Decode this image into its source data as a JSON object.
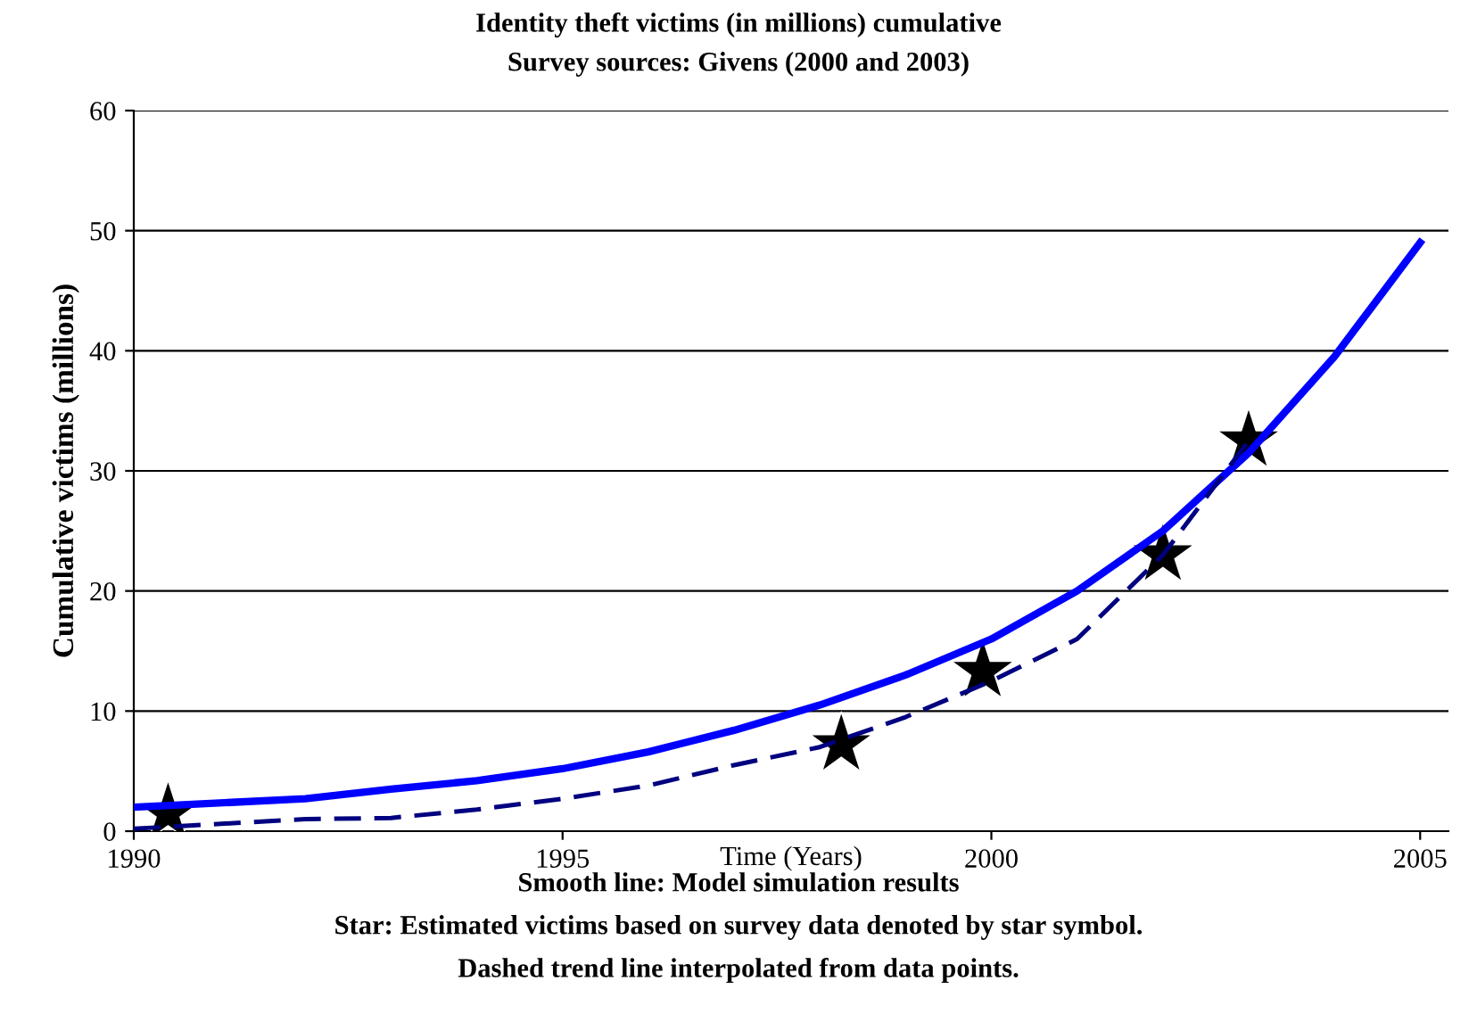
{
  "chart_data": {
    "type": "line",
    "title": "Identity theft victims (in millions) cumulative",
    "subtitle": "Survey sources: Givens (2000 and 2003)",
    "xlabel": "Time (Years)",
    "ylabel": "Cumulative victims (millions)",
    "annotations": [
      "Smooth line: Model simulation results",
      "Star: Estimated victims based on survey data denoted by star symbol.",
      "Dashed trend line interpolated from data points."
    ],
    "xlim": [
      1990,
      2005.33
    ],
    "ylim": [
      0,
      60
    ],
    "xticks": [
      1990,
      1995,
      2000,
      2005
    ],
    "yticks": [
      0,
      10,
      20,
      30,
      40,
      50,
      60
    ],
    "grid": "y",
    "legend": false,
    "series": [
      {
        "color": "#0000ff",
        "line_style": "solid",
        "marker": "none",
        "x": [
          1990,
          1992,
          1993,
          1994,
          1995,
          1996,
          1997,
          1998,
          1999,
          2000,
          2001,
          2002,
          2003,
          2004,
          2005
        ],
        "values": [
          2,
          2.7,
          3.5,
          4.2,
          5.2,
          6.6,
          8.4,
          10.5,
          13,
          16,
          20,
          25,
          31.5,
          39.5,
          49
        ]
      },
      {
        "color": "#000080",
        "line_style": "dashed",
        "marker": "none",
        "x": [
          1990,
          1992,
          1993,
          1994,
          1995,
          1996,
          1997,
          1998,
          1999,
          2000,
          2001,
          2002,
          2003
        ],
        "values": [
          0.2,
          1,
          1.1,
          1.8,
          2.7,
          3.8,
          5.5,
          7,
          9.5,
          12.5,
          16,
          23,
          32.5
        ]
      },
      {
        "type": "scatter",
        "color": "#000000",
        "marker": "star",
        "x": [
          1990.4,
          1998.25,
          1999.9,
          2002,
          2003
        ],
        "values": [
          1.5,
          7.2,
          13.3,
          23,
          32.5
        ]
      }
    ]
  }
}
